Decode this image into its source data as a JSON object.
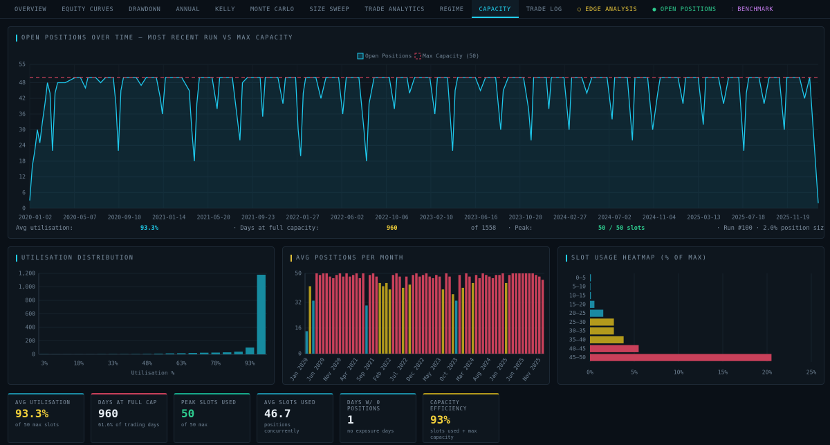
{
  "nav": {
    "tabs": [
      "OVERVIEW",
      "EQUITY CURVES",
      "DRAWDOWN",
      "ANNUAL",
      "KELLY",
      "MONTE CARLO",
      "SIZE SWEEP",
      "TRADE ANALYTICS",
      "REGIME",
      "CAPACITY",
      "TRADE LOG",
      "○ EDGE ANALYSIS",
      "● OPEN POSITIONS",
      "⫶ BENCHMARK"
    ],
    "active": 9
  },
  "summary": {
    "avg_label": "Avg utilisation:",
    "avg_value": "93.3%",
    "days_label": "·  Days at full capacity:",
    "days_value": "960",
    "days_total": "of 1558",
    "peak_label": "·  Peak:",
    "peak_value": "50 / 50 slots",
    "run": "·  Run #100 · 2.0% position size"
  },
  "chart_data": [
    {
      "type": "line",
      "title": "OPEN POSITIONS OVER TIME — MOST RECENT RUN VS MAX CAPACITY",
      "legend": "top",
      "grid": true,
      "x": [
        0,
        5,
        10,
        15,
        20,
        25,
        30,
        35,
        40,
        45,
        50,
        55,
        60,
        70,
        80,
        90,
        100,
        110,
        115,
        130,
        140,
        150,
        165,
        170,
        175,
        180,
        185,
        210,
        220,
        230,
        250,
        258,
        262,
        268,
        300,
        315,
        320,
        325,
        330,
        335,
        360,
        370,
        375,
        400,
        415,
        420,
        430,
        455,
        460,
        465,
        490,
        500,
        505,
        525,
        530,
        535,
        540,
        545,
        565,
        575,
        585,
        610,
        618,
        625,
        650,
        660,
        665,
        670,
        680,
        710,
        720,
        725,
        745,
        750,
        760,
        790,
        800,
        805,
        825,
        835,
        840,
        845,
        880,
        890,
        900,
        920,
        930,
        935,
        945,
        975,
        985,
        990,
        995,
        1020,
        1025,
        1030,
        1055,
        1065,
        1070,
        1090,
        1100,
        1110,
        1140,
        1150,
        1155,
        1180,
        1190,
        1195,
        1220,
        1230,
        1240,
        1245,
        1280,
        1290,
        1295,
        1320,
        1330,
        1335,
        1360,
        1370,
        1380,
        1400,
        1410,
        1415,
        1420,
        1440,
        1450,
        1460,
        1480,
        1490,
        1495,
        1520,
        1530,
        1540,
        1557
      ],
      "series": [
        {
          "name": "Open Positions",
          "color": "#1ec8ec",
          "values": [
            3,
            16,
            22,
            30,
            25,
            33,
            40,
            48,
            44,
            22,
            44,
            48,
            48,
            48,
            49,
            50,
            50,
            46,
            50,
            50,
            48,
            50,
            50,
            40,
            22,
            45,
            50,
            50,
            47,
            50,
            50,
            42,
            36,
            50,
            50,
            45,
            30,
            18,
            40,
            50,
            50,
            38,
            50,
            50,
            26,
            48,
            50,
            50,
            35,
            50,
            50,
            40,
            50,
            50,
            30,
            20,
            44,
            50,
            50,
            42,
            50,
            50,
            36,
            50,
            50,
            30,
            18,
            40,
            50,
            50,
            38,
            50,
            50,
            44,
            50,
            50,
            36,
            50,
            50,
            22,
            45,
            50,
            50,
            45,
            50,
            50,
            30,
            45,
            50,
            50,
            38,
            26,
            50,
            50,
            38,
            50,
            50,
            30,
            50,
            50,
            44,
            50,
            50,
            34,
            50,
            50,
            26,
            50,
            50,
            30,
            44,
            50,
            50,
            40,
            50,
            50,
            32,
            50,
            50,
            40,
            50,
            50,
            22,
            44,
            50,
            50,
            40,
            50,
            50,
            30,
            50,
            50,
            42,
            50,
            2
          ]
        }
      ],
      "reference_line": {
        "name": "Max Capacity (50)",
        "value": 50,
        "color": "#c9405a"
      },
      "xlim": [
        0,
        1557
      ],
      "xticks": [
        {
          "value": 0,
          "label": "2020-01-02"
        },
        {
          "value": 88,
          "label": "2020-05-07"
        },
        {
          "value": 176,
          "label": "2020-09-10"
        },
        {
          "value": 264,
          "label": "2021-01-14"
        },
        {
          "value": 352,
          "label": "2021-05-20"
        },
        {
          "value": 440,
          "label": "2021-09-23"
        },
        {
          "value": 528,
          "label": "2022-01-27"
        },
        {
          "value": 616,
          "label": "2022-06-02"
        },
        {
          "value": 704,
          "label": "2022-10-06"
        },
        {
          "value": 792,
          "label": "2023-02-10"
        },
        {
          "value": 880,
          "label": "2023-06-16"
        },
        {
          "value": 968,
          "label": "2023-10-20"
        },
        {
          "value": 1056,
          "label": "2024-02-27"
        },
        {
          "value": 1144,
          "label": "2024-07-02"
        },
        {
          "value": 1232,
          "label": "2024-11-04"
        },
        {
          "value": 1320,
          "label": "2025-03-13"
        },
        {
          "value": 1408,
          "label": "2025-07-18"
        },
        {
          "value": 1496,
          "label": "2025-11-19"
        }
      ],
      "ylim": [
        0,
        55
      ],
      "yticks": [
        0,
        6,
        12,
        18,
        24,
        30,
        36,
        42,
        48,
        55
      ]
    },
    {
      "type": "bar",
      "title": "UTILISATION DISTRIBUTION",
      "x_label": "Utilisation %",
      "grid": true,
      "color": "#168ba0",
      "categories": [
        "3%",
        null,
        null,
        "18%",
        null,
        null,
        "33%",
        null,
        null,
        "48%",
        null,
        null,
        "63%",
        null,
        null,
        "78%",
        null,
        null,
        "93%",
        null
      ],
      "values": [
        2,
        1,
        1,
        1,
        1,
        2,
        3,
        3,
        4,
        6,
        10,
        14,
        16,
        20,
        24,
        26,
        30,
        40,
        100,
        1180
      ],
      "ylim": [
        0,
        1200
      ],
      "yticks": [
        0,
        200,
        400,
        600,
        800,
        {
          "value": 1000,
          "label": "1,000"
        },
        {
          "value": 1200,
          "label": "1,200"
        }
      ]
    },
    {
      "type": "bar",
      "title": "AVG POSITIONS PER MONTH",
      "grid": true,
      "rotate_labels": true,
      "categories": [
        "Jan 2020",
        null,
        null,
        null,
        null,
        "Jun 2020",
        null,
        null,
        null,
        null,
        "Nov 2020",
        null,
        null,
        null,
        null,
        "Apr 2021",
        null,
        null,
        null,
        null,
        "Sep 2021",
        null,
        null,
        null,
        null,
        "Feb 2022",
        null,
        null,
        null,
        null,
        "Jul 2022",
        null,
        null,
        null,
        null,
        "Dec 2022",
        null,
        null,
        null,
        null,
        "May 2023",
        null,
        null,
        null,
        null,
        "Oct 2023",
        null,
        null,
        null,
        null,
        "Mar 2024",
        null,
        null,
        null,
        null,
        "Aug 2024",
        null,
        null,
        null,
        null,
        "Jan 2025",
        null,
        null,
        null,
        null,
        "Jun 2025",
        null,
        null,
        null,
        null,
        "Nov 2025",
        null
      ],
      "values": [
        14,
        42,
        33,
        50,
        49,
        50,
        50,
        48,
        47,
        49,
        50,
        48,
        50,
        48,
        49,
        50,
        47,
        50,
        30,
        49,
        50,
        48,
        44,
        42,
        44,
        40,
        49,
        50,
        48,
        41,
        48,
        43,
        49,
        50,
        48,
        49,
        50,
        48,
        47,
        49,
        48,
        40,
        50,
        48,
        37,
        33,
        49,
        41,
        50,
        48,
        44,
        49,
        47,
        50,
        49,
        48,
        47,
        49,
        49,
        50,
        44,
        49,
        50,
        50,
        50,
        50,
        50,
        50,
        50,
        49,
        48,
        46
      ],
      "colors": [
        "#1a8aa3",
        "#b39a1c",
        "#1a8aa3",
        "#c9405a",
        "#c9405a",
        "#c9405a",
        "#c9405a",
        "#c9405a",
        "#c9405a",
        "#c9405a",
        "#c9405a",
        "#c9405a",
        "#c9405a",
        "#c9405a",
        "#c9405a",
        "#c9405a",
        "#c9405a",
        "#c9405a",
        "#1a8aa3",
        "#c9405a",
        "#c9405a",
        "#c9405a",
        "#b39a1c",
        "#b39a1c",
        "#b39a1c",
        "#b39a1c",
        "#c9405a",
        "#c9405a",
        "#c9405a",
        "#b39a1c",
        "#c9405a",
        "#b39a1c",
        "#c9405a",
        "#c9405a",
        "#c9405a",
        "#c9405a",
        "#c9405a",
        "#c9405a",
        "#c9405a",
        "#c9405a",
        "#c9405a",
        "#b39a1c",
        "#c9405a",
        "#c9405a",
        "#b39a1c",
        "#1a8aa3",
        "#c9405a",
        "#b39a1c",
        "#c9405a",
        "#c9405a",
        "#b39a1c",
        "#c9405a",
        "#c9405a",
        "#c9405a",
        "#c9405a",
        "#c9405a",
        "#c9405a",
        "#c9405a",
        "#c9405a",
        "#c9405a",
        "#b39a1c",
        "#c9405a",
        "#c9405a",
        "#c9405a",
        "#c9405a",
        "#c9405a",
        "#c9405a",
        "#c9405a",
        "#c9405a",
        "#c9405a",
        "#c9405a",
        "#c9405a"
      ],
      "ylim": [
        0,
        50
      ],
      "yticks": [
        0,
        16,
        32,
        50
      ]
    },
    {
      "type": "barh",
      "title": "SLOT USAGE HEATMAP (% OF MAX)",
      "grid": true,
      "categories": [
        "0–5",
        "5–10",
        "10–15",
        "15–20",
        "20–25",
        "25–30",
        "30–35",
        "35–40",
        "40–45",
        "45–50"
      ],
      "values": [
        0.1,
        0.05,
        0.1,
        0.5,
        1.5,
        2.7,
        2.7,
        3.8,
        5.5,
        20.5
      ],
      "colors": [
        "#1a8aa3",
        "#1a8aa3",
        "#1a8aa3",
        "#1a8aa3",
        "#1a8aa3",
        "#b39a1c",
        "#b39a1c",
        "#b39a1c",
        "#c9405a",
        "#c9405a"
      ],
      "xlim": [
        0,
        25
      ],
      "xticks": [
        {
          "value": 0,
          "label": "0%"
        },
        {
          "value": 5,
          "label": "5%"
        },
        {
          "value": 10,
          "label": "10%"
        },
        {
          "value": 15,
          "label": "15%"
        },
        {
          "value": 20,
          "label": "20%"
        },
        {
          "value": 25,
          "label": "25%"
        }
      ]
    }
  ],
  "kpis": [
    {
      "label": "AVG UTILISATION",
      "value": "93.3%",
      "sub": "of 50 max slots",
      "accent": "#1a8aa3",
      "value_color": "#f2d03b"
    },
    {
      "label": "DAYS AT FULL CAP",
      "value": "960",
      "sub": "61.6% of trading days",
      "accent": "#c9405a",
      "value_color": "#e6edf3"
    },
    {
      "label": "PEAK SLOTS USED",
      "value": "50",
      "sub": "of 50 max",
      "accent": "#17a88a",
      "value_color": "#2ecc8f"
    },
    {
      "label": "AVG SLOTS USED",
      "value": "46.7",
      "sub": "positions concurrently",
      "accent": "#1a8aa3",
      "value_color": "#e6edf3"
    },
    {
      "label": "DAYS W/ 0 POSITIONS",
      "value": "1",
      "sub": "no exposure days",
      "accent": "#1a8aa3",
      "value_color": "#e6edf3"
    },
    {
      "label": "CAPACITY EFFICIENCY",
      "value": "93%",
      "sub": "slots used ÷ max capacity",
      "accent": "#b39a1c",
      "value_color": "#f2d03b"
    }
  ]
}
